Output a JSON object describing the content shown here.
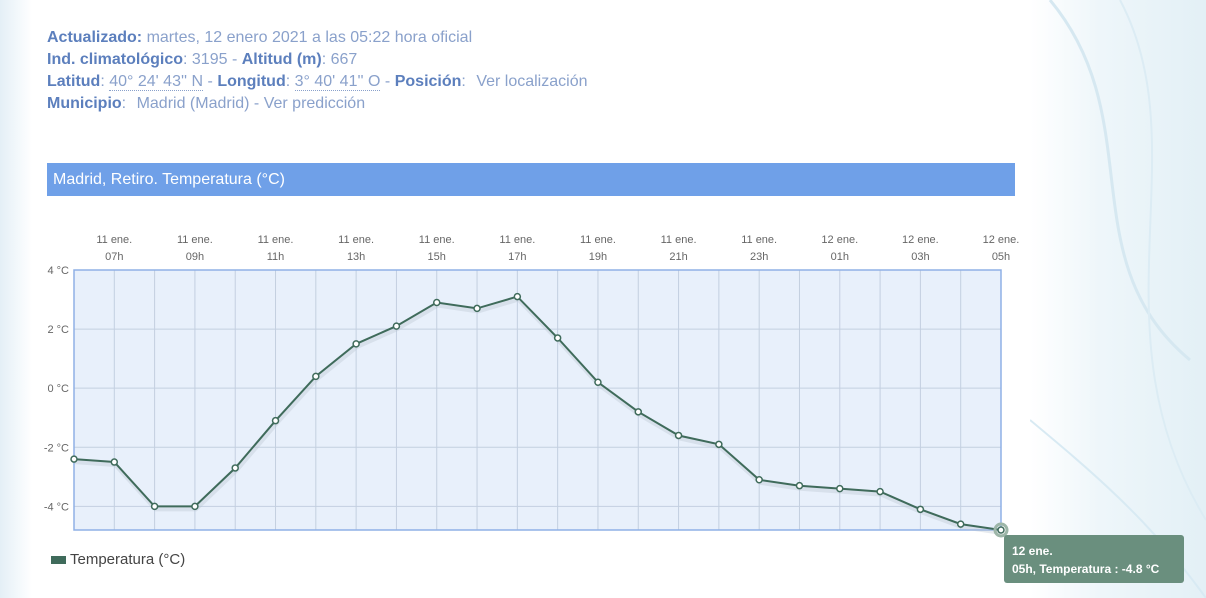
{
  "station": {
    "updated_label": "Actualizado:",
    "updated_value": "martes, 12 enero 2021 a las 05:22 hora oficial",
    "climo_label": "Ind. climatológico",
    "climo_value": ": 3195 -",
    "altitude_label": "Altitud (m)",
    "altitude_value": ": 667",
    "lat_label": "Latitud",
    "lat_sep": ":",
    "lat_value": "40° 24' 43'' N",
    "lat_dash": " -",
    "lon_label": "Longitud",
    "lon_sep": ":",
    "lon_value": "3° 40' 41'' O",
    "lon_dash": " -",
    "pos_label": "Posición",
    "pos_sep": ":",
    "pos_link": "Ver localización",
    "muni_label": "Municipio",
    "muni_sep": ":",
    "muni_value": "Madrid (Madrid) -",
    "muni_link": "Ver predicción"
  },
  "chart_title": "Madrid, Retiro. Temperatura (°C)",
  "colors": {
    "title_bg": "#6fa0e8",
    "plot_bg": "#e8f0fb",
    "plot_border": "#8fb0e6",
    "line": "#3f6b5b",
    "marker_fill": "#ffffff",
    "tooltip_bg": "#6a8f7e"
  },
  "chart_data": {
    "type": "line",
    "title": "Madrid, Retiro. Temperatura (°C)",
    "xlabel": "",
    "ylabel": "",
    "ylim": [
      -4.8,
      4
    ],
    "y_ticks": [
      4,
      2,
      0,
      -2,
      -4
    ],
    "y_tick_labels": [
      "4 °C",
      "2 °C",
      "0 °C",
      "-2 °C",
      "-4 °C"
    ],
    "x_tick_labels": [
      [
        "11 ene.",
        "07h"
      ],
      [
        "11 ene.",
        "09h"
      ],
      [
        "11 ene.",
        "11h"
      ],
      [
        "11 ene.",
        "13h"
      ],
      [
        "11 ene.",
        "15h"
      ],
      [
        "11 ene.",
        "17h"
      ],
      [
        "11 ene.",
        "19h"
      ],
      [
        "11 ene.",
        "21h"
      ],
      [
        "11 ene.",
        "23h"
      ],
      [
        "12 ene.",
        "01h"
      ],
      [
        "12 ene.",
        "03h"
      ],
      [
        "12 ene.",
        "05h"
      ]
    ],
    "x": [
      "11 ene. 06h",
      "11 ene. 07h",
      "11 ene. 08h",
      "11 ene. 09h",
      "11 ene. 10h",
      "11 ene. 11h",
      "11 ene. 12h",
      "11 ene. 13h",
      "11 ene. 14h",
      "11 ene. 15h",
      "11 ene. 16h",
      "11 ene. 17h",
      "11 ene. 18h",
      "11 ene. 19h",
      "11 ene. 20h",
      "11 ene. 21h",
      "11 ene. 22h",
      "11 ene. 23h",
      "12 ene. 00h",
      "12 ene. 01h",
      "12 ene. 02h",
      "12 ene. 03h",
      "12 ene. 04h",
      "12 ene. 05h"
    ],
    "series": [
      {
        "name": "Temperatura (°C)",
        "values": [
          -2.4,
          -2.5,
          -4.0,
          -4.0,
          -2.7,
          -1.1,
          0.4,
          1.5,
          2.1,
          2.9,
          2.7,
          3.1,
          1.7,
          0.2,
          -0.8,
          -1.6,
          -1.9,
          -3.1,
          -3.3,
          -3.4,
          -3.5,
          -4.1,
          -4.6,
          -4.8
        ]
      }
    ],
    "grid": true,
    "legend": "bottom-left"
  },
  "tooltip": {
    "line1": "12 ene.",
    "line2": "05h, Temperatura : -4.8 °C"
  }
}
